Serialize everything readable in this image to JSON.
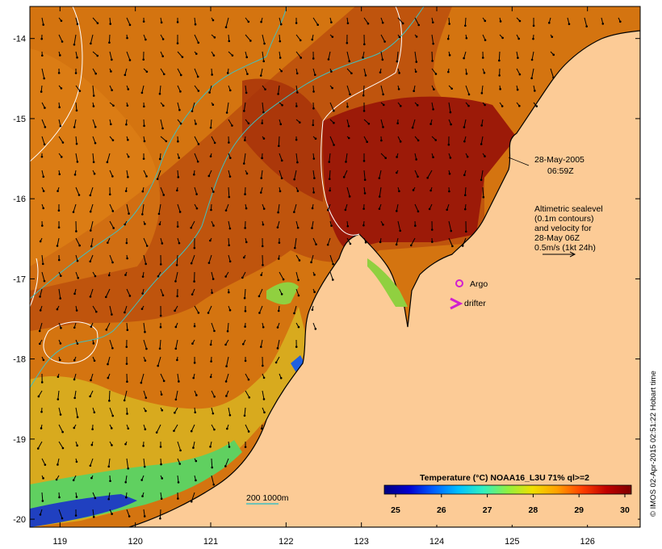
{
  "map": {
    "lon_range": [
      118.6,
      126.7
    ],
    "lat_range": [
      -20.1,
      -13.6
    ],
    "lon_ticks": [
      "119",
      "120",
      "121",
      "122",
      "123",
      "124",
      "125",
      "126"
    ],
    "lat_ticks": [
      "-14",
      "-15",
      "-16",
      "-17",
      "-18",
      "-19",
      "-20"
    ]
  },
  "annotation": {
    "date": "28-May-2005",
    "time": "06:59Z",
    "altimetry_lines": [
      "Altimetric sealevel",
      "(0.1m contours)",
      "and velocity for",
      "28-May 06Z",
      "0.5m/s (1kt 24h)"
    ]
  },
  "legend": {
    "argo_label": "Argo",
    "drifter_label": "drifter",
    "argo_color": "#d020d0",
    "drifter_color": "#d020d0",
    "isobath_label": "200  1000m",
    "isobath_color": "#40c0c0"
  },
  "colorbar": {
    "title": "Temperature (°C) NOAA16_L3U 71% ql>=2",
    "ticks": [
      "25",
      "26",
      "27",
      "28",
      "29",
      "30"
    ],
    "colors": [
      "#00007f",
      "#0000d0",
      "#0060ff",
      "#00c0ff",
      "#30f0c0",
      "#90f040",
      "#f0e000",
      "#ffa000",
      "#ff4000",
      "#c00000",
      "#7f0000"
    ]
  },
  "credit": "© IMOS 02-Apr-2015 02:51:22 Hobart time",
  "colors": {
    "land": "#fccb96",
    "sea_warm": "#d2700c",
    "sea_hot": "#a0220a",
    "coast": "#000000",
    "contour": "#ffffff",
    "isobath": "#40c0c0"
  }
}
